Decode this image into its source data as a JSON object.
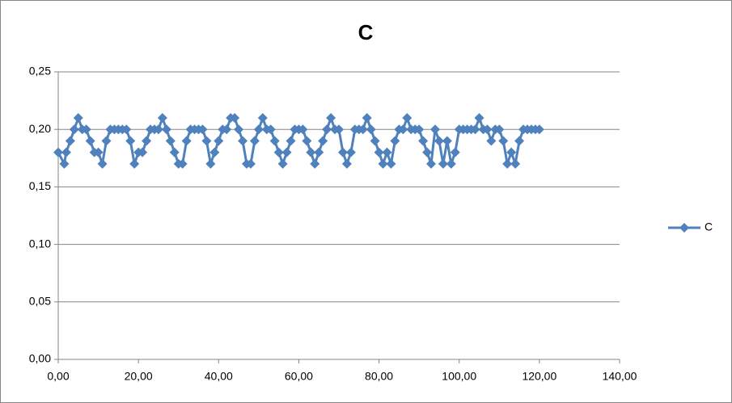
{
  "chart_data": {
    "type": "scatter",
    "title": "C",
    "legend": "right",
    "grid": true,
    "x": [
      0,
      1.5,
      2,
      3,
      4,
      5,
      6,
      7,
      8,
      9,
      10,
      11,
      12,
      13,
      14,
      15,
      16,
      17,
      18,
      19,
      20,
      21,
      22,
      23,
      24,
      25,
      26,
      27,
      28,
      29,
      30,
      31,
      32,
      33,
      34,
      35,
      36,
      37,
      38,
      39,
      40,
      41,
      42,
      43,
      44,
      45,
      46,
      47,
      48,
      49,
      50,
      51,
      52,
      53,
      54,
      55,
      56,
      57,
      58,
      59,
      60,
      61,
      62,
      63,
      64,
      65,
      66,
      67,
      68,
      69,
      70,
      71,
      72,
      73,
      74,
      75,
      76,
      77,
      78,
      79,
      80,
      81,
      82,
      83,
      84,
      85,
      86,
      87,
      88,
      89,
      90,
      91,
      92,
      93,
      94,
      95,
      96,
      97,
      98,
      99,
      100,
      101,
      102,
      103,
      104,
      105,
      106,
      107,
      108,
      109,
      110,
      111,
      112,
      113,
      114,
      115,
      116,
      117,
      118,
      119,
      120
    ],
    "series": [
      {
        "name": "C",
        "color": "#4f81bd",
        "values": [
          0.18,
          0.17,
          0.18,
          0.19,
          0.2,
          0.21,
          0.2,
          0.2,
          0.19,
          0.18,
          0.18,
          0.17,
          0.19,
          0.2,
          0.2,
          0.2,
          0.2,
          0.2,
          0.19,
          0.17,
          0.18,
          0.18,
          0.19,
          0.2,
          0.2,
          0.2,
          0.21,
          0.2,
          0.19,
          0.18,
          0.17,
          0.17,
          0.19,
          0.2,
          0.2,
          0.2,
          0.2,
          0.19,
          0.17,
          0.18,
          0.19,
          0.2,
          0.2,
          0.21,
          0.21,
          0.2,
          0.19,
          0.17,
          0.17,
          0.19,
          0.2,
          0.21,
          0.2,
          0.2,
          0.19,
          0.18,
          0.17,
          0.18,
          0.19,
          0.2,
          0.2,
          0.2,
          0.19,
          0.18,
          0.17,
          0.18,
          0.19,
          0.2,
          0.21,
          0.2,
          0.2,
          0.18,
          0.17,
          0.18,
          0.2,
          0.2,
          0.2,
          0.21,
          0.2,
          0.19,
          0.18,
          0.17,
          0.18,
          0.17,
          0.19,
          0.2,
          0.2,
          0.21,
          0.2,
          0.2,
          0.2,
          0.19,
          0.18,
          0.17,
          0.2,
          0.19,
          0.17,
          0.19,
          0.17,
          0.18,
          0.2,
          0.2,
          0.2,
          0.2,
          0.2,
          0.21,
          0.2,
          0.2,
          0.19,
          0.2,
          0.2,
          0.19,
          0.17,
          0.18,
          0.17,
          0.19,
          0.2,
          0.2,
          0.2,
          0.2,
          0.2
        ]
      }
    ],
    "xlim": [
      0,
      140
    ],
    "xticks": [
      {
        "value": 0,
        "label": "0,00"
      },
      {
        "value": 20,
        "label": "20,00"
      },
      {
        "value": 40,
        "label": "40,00"
      },
      {
        "value": 60,
        "label": "60,00"
      },
      {
        "value": 80,
        "label": "80,00"
      },
      {
        "value": 100,
        "label": "100,00"
      },
      {
        "value": 120,
        "label": "120,00"
      },
      {
        "value": 140,
        "label": "140,00"
      }
    ],
    "ylim": [
      0,
      0.25
    ],
    "yticks": [
      {
        "value": 0,
        "label": "0,00"
      },
      {
        "value": 0.05,
        "label": "0,05"
      },
      {
        "value": 0.1,
        "label": "0,10"
      },
      {
        "value": 0.15,
        "label": "0,15"
      },
      {
        "value": 0.2,
        "label": "0,20"
      },
      {
        "value": 0.25,
        "label": "0,25"
      }
    ]
  }
}
